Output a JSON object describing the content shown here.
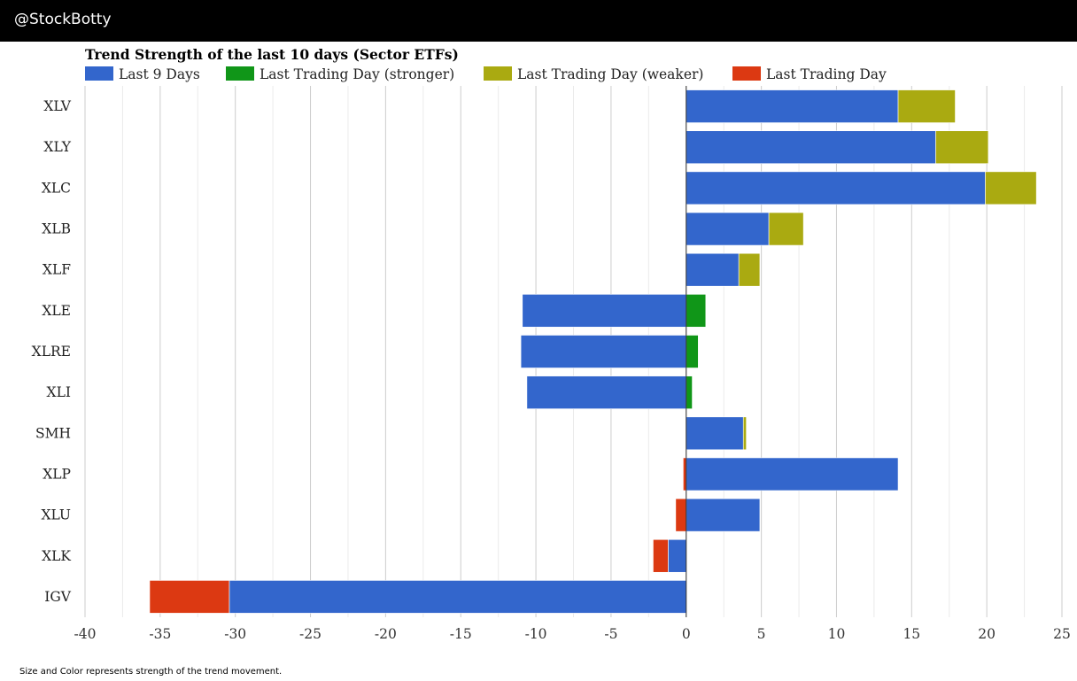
{
  "header": {
    "brand": "@StockBotty"
  },
  "footnote": "Size and Color represents strength of the trend movement.",
  "colors": {
    "last9": "#3366cc",
    "stronger": "#109618",
    "weaker": "#aaaa11",
    "last": "#dc3912",
    "grid_major": "#cccccc",
    "grid_minor": "#ebebeb",
    "zero_line": "#333333"
  },
  "chart_data": {
    "type": "bar",
    "orientation": "horizontal",
    "stacked": true,
    "title": "Trend Strength of the last 10 days (Sector ETFs)",
    "legend": [
      {
        "key": "last9",
        "label": "Last 9 Days"
      },
      {
        "key": "stronger",
        "label": "Last Trading Day (stronger)"
      },
      {
        "key": "weaker",
        "label": "Last Trading Day (weaker)"
      },
      {
        "key": "last",
        "label": "Last Trading Day"
      }
    ],
    "legend_position": "top-left",
    "xlim": [
      -40,
      25
    ],
    "xticks": [
      -40,
      -35,
      -30,
      -25,
      -20,
      -15,
      -10,
      -5,
      0,
      5,
      10,
      15,
      20,
      25
    ],
    "categories": [
      "XLV",
      "XLY",
      "XLC",
      "XLB",
      "XLF",
      "XLE",
      "XLRE",
      "XLI",
      "SMH",
      "XLP",
      "XLU",
      "XLK",
      "IGV"
    ],
    "segments": [
      [
        {
          "series": "last9",
          "from": 0,
          "to": 14.1
        },
        {
          "series": "weaker",
          "from": 14.1,
          "to": 17.9
        }
      ],
      [
        {
          "series": "last9",
          "from": 0,
          "to": 16.6
        },
        {
          "series": "weaker",
          "from": 16.6,
          "to": 20.1
        }
      ],
      [
        {
          "series": "last9",
          "from": 0,
          "to": 19.9
        },
        {
          "series": "weaker",
          "from": 19.9,
          "to": 23.3
        }
      ],
      [
        {
          "series": "last9",
          "from": 0,
          "to": 5.5
        },
        {
          "series": "weaker",
          "from": 5.5,
          "to": 7.8
        }
      ],
      [
        {
          "series": "last9",
          "from": 0,
          "to": 3.5
        },
        {
          "series": "weaker",
          "from": 3.5,
          "to": 4.9
        }
      ],
      [
        {
          "series": "last9",
          "from": -10.9,
          "to": 0
        },
        {
          "series": "stronger",
          "from": 0,
          "to": 1.3
        }
      ],
      [
        {
          "series": "last9",
          "from": -11.0,
          "to": 0
        },
        {
          "series": "stronger",
          "from": 0,
          "to": 0.8
        }
      ],
      [
        {
          "series": "last9",
          "from": -10.6,
          "to": 0
        },
        {
          "series": "stronger",
          "from": 0,
          "to": 0.4
        }
      ],
      [
        {
          "series": "last9",
          "from": 0,
          "to": 3.8
        },
        {
          "series": "weaker",
          "from": 3.8,
          "to": 4.0
        }
      ],
      [
        {
          "series": "last9",
          "from": 0,
          "to": 14.1
        },
        {
          "series": "last",
          "from": -0.2,
          "to": 0
        }
      ],
      [
        {
          "series": "last9",
          "from": 0,
          "to": 4.9
        },
        {
          "series": "last",
          "from": -0.7,
          "to": 0
        }
      ],
      [
        {
          "series": "last9",
          "from": -1.2,
          "to": 0
        },
        {
          "series": "last",
          "from": -2.2,
          "to": -1.2
        }
      ],
      [
        {
          "series": "last9",
          "from": -30.4,
          "to": 0
        },
        {
          "series": "last",
          "from": -35.7,
          "to": -30.4
        }
      ]
    ]
  }
}
